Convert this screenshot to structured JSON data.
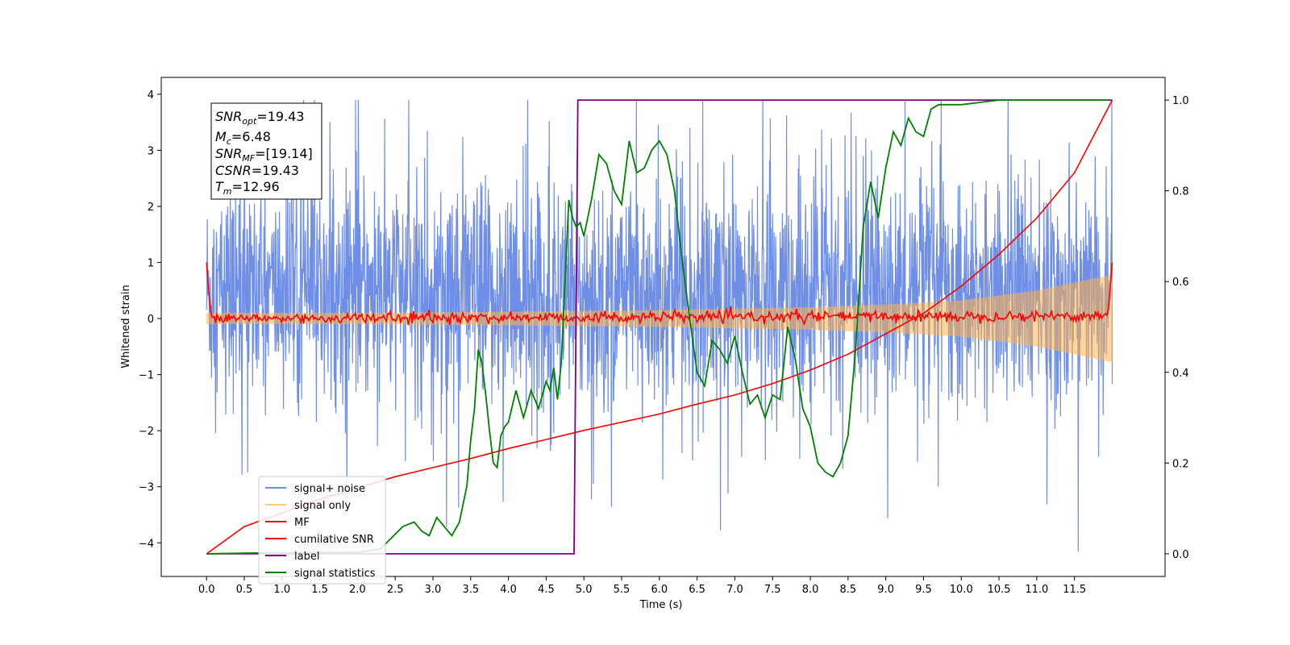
{
  "chart_data": {
    "type": "line",
    "xlabel": "Time (s)",
    "ylabel": "Whitened strain",
    "xlim": [
      -0.6,
      12.7
    ],
    "ylim": [
      -4.6,
      4.3
    ],
    "ylim_right": [
      -0.05,
      1.05
    ],
    "xticks": [
      "0.0",
      "0.5",
      "1.0",
      "1.5",
      "2.0",
      "2.5",
      "3.0",
      "3.5",
      "4.0",
      "4.5",
      "5.0",
      "5.5",
      "6.0",
      "6.5",
      "7.0",
      "7.5",
      "8.0",
      "8.5",
      "9.0",
      "9.5",
      "10.0",
      "10.5",
      "11.0",
      "11.5"
    ],
    "yticks": [
      "4",
      "3",
      "2",
      "1",
      "0",
      "−1",
      "−2",
      "−3",
      "−4"
    ],
    "yticks_right": [
      "1.0",
      "0.8",
      "0.6",
      "0.4",
      "0.2",
      "0.0"
    ],
    "grid": false,
    "legend_position": "lower-left",
    "legend": [
      "signal+ noise",
      "signal only",
      "MF",
      "cumilative SNR",
      "label",
      "signal statistics"
    ],
    "colors": {
      "signal_noise": "#6f8ee6",
      "signal_only": "#ffb347",
      "mf": "#ff0000",
      "cumulative_snr": "#ff0000",
      "label": "#800080",
      "signal_statistics": "#008000"
    },
    "stats": {
      "snr_opt_sym": "SNR",
      "snr_opt_sub": "opt",
      "snr_opt_val": "=19.43",
      "mc_sym": "M",
      "mc_sub": "c",
      "mc_val": "=6.48",
      "snr_mf_sym": "SNR",
      "snr_mf_sub": "MF",
      "snr_mf_val": "=[19.14]",
      "csnr_sym": "CSNR",
      "csnr_val": "=19.43",
      "tm_sym": "T",
      "tm_sub": "m",
      "tm_val": "=12.96"
    },
    "series": [
      {
        "name": "signal+ noise",
        "axis": "left",
        "x_range": [
          0,
          12.0
        ],
        "envelope_core": [
          -1.4,
          2.4
        ],
        "spike_extremes": [
          -4.15,
          3.9
        ]
      },
      {
        "name": "signal only",
        "axis": "left",
        "x": [
          0,
          2,
          4,
          6,
          8,
          9,
          10,
          11,
          12.0
        ],
        "amplitude": [
          0.1,
          0.1,
          0.12,
          0.15,
          0.2,
          0.25,
          0.32,
          0.5,
          0.78
        ]
      },
      {
        "name": "MF",
        "axis": "left",
        "x": [
          0.0,
          0.02,
          0.06,
          0.1,
          11.94,
          11.97,
          12.0
        ],
        "y": [
          1.0,
          0.6,
          0.05,
          0.0,
          0.05,
          0.5,
          1.0
        ],
        "noise_amplitude": 0.08
      },
      {
        "name": "cumilative SNR",
        "axis": "right",
        "x": [
          0.0,
          0.5,
          1.0,
          1.5,
          2.0,
          2.5,
          3.0,
          3.5,
          4.0,
          4.5,
          5.0,
          5.5,
          6.0,
          6.5,
          7.0,
          7.5,
          8.0,
          8.5,
          9.0,
          9.5,
          10.0,
          10.5,
          11.0,
          11.5,
          12.0
        ],
        "y": [
          0.0,
          0.06,
          0.09,
          0.12,
          0.145,
          0.17,
          0.19,
          0.21,
          0.232,
          0.252,
          0.272,
          0.29,
          0.308,
          0.33,
          0.35,
          0.375,
          0.405,
          0.44,
          0.485,
          0.53,
          0.59,
          0.66,
          0.74,
          0.84,
          1.0
        ]
      },
      {
        "name": "label",
        "axis": "right",
        "x": [
          0.0,
          4.87,
          4.92,
          12.0
        ],
        "y": [
          0.0,
          0.0,
          1.0,
          1.0
        ]
      },
      {
        "name": "signal statistics",
        "axis": "right",
        "x": [
          0.0,
          0.4,
          0.8,
          1.2,
          1.6,
          2.0,
          2.3,
          2.6,
          2.75,
          2.85,
          2.95,
          3.05,
          3.15,
          3.25,
          3.35,
          3.45,
          3.5,
          3.55,
          3.6,
          3.65,
          3.7,
          3.75,
          3.8,
          3.85,
          3.9,
          3.95,
          4.0,
          4.1,
          4.2,
          4.3,
          4.4,
          4.45,
          4.5,
          4.55,
          4.6,
          4.65,
          4.7,
          4.75,
          4.8,
          4.85,
          4.9,
          4.95,
          5.0,
          5.1,
          5.2,
          5.3,
          5.4,
          5.5,
          5.6,
          5.7,
          5.8,
          5.9,
          6.0,
          6.1,
          6.2,
          6.3,
          6.4,
          6.5,
          6.6,
          6.7,
          6.8,
          6.9,
          7.0,
          7.1,
          7.2,
          7.3,
          7.4,
          7.5,
          7.6,
          7.7,
          7.8,
          7.9,
          8.0,
          8.1,
          8.2,
          8.3,
          8.4,
          8.5,
          8.6,
          8.7,
          8.8,
          8.9,
          9.0,
          9.1,
          9.2,
          9.3,
          9.4,
          9.5,
          9.6,
          9.7,
          9.8,
          10.0,
          10.5,
          11.0,
          11.5,
          11.95
        ],
        "y": [
          0.0,
          0.001,
          0.002,
          0.002,
          0.003,
          0.003,
          0.01,
          0.06,
          0.07,
          0.05,
          0.04,
          0.08,
          0.06,
          0.04,
          0.07,
          0.15,
          0.25,
          0.32,
          0.45,
          0.42,
          0.35,
          0.27,
          0.2,
          0.19,
          0.26,
          0.28,
          0.29,
          0.36,
          0.3,
          0.36,
          0.32,
          0.35,
          0.38,
          0.36,
          0.41,
          0.34,
          0.42,
          0.6,
          0.78,
          0.74,
          0.72,
          0.73,
          0.7,
          0.78,
          0.88,
          0.86,
          0.8,
          0.77,
          0.91,
          0.84,
          0.85,
          0.89,
          0.91,
          0.88,
          0.8,
          0.65,
          0.52,
          0.4,
          0.37,
          0.47,
          0.45,
          0.42,
          0.48,
          0.4,
          0.33,
          0.35,
          0.3,
          0.35,
          0.34,
          0.5,
          0.43,
          0.32,
          0.28,
          0.2,
          0.18,
          0.17,
          0.2,
          0.26,
          0.45,
          0.72,
          0.82,
          0.74,
          0.85,
          0.93,
          0.9,
          0.96,
          0.93,
          0.92,
          0.98,
          0.99,
          0.99,
          0.99,
          1.0,
          1.0,
          1.0,
          1.0
        ]
      }
    ]
  }
}
